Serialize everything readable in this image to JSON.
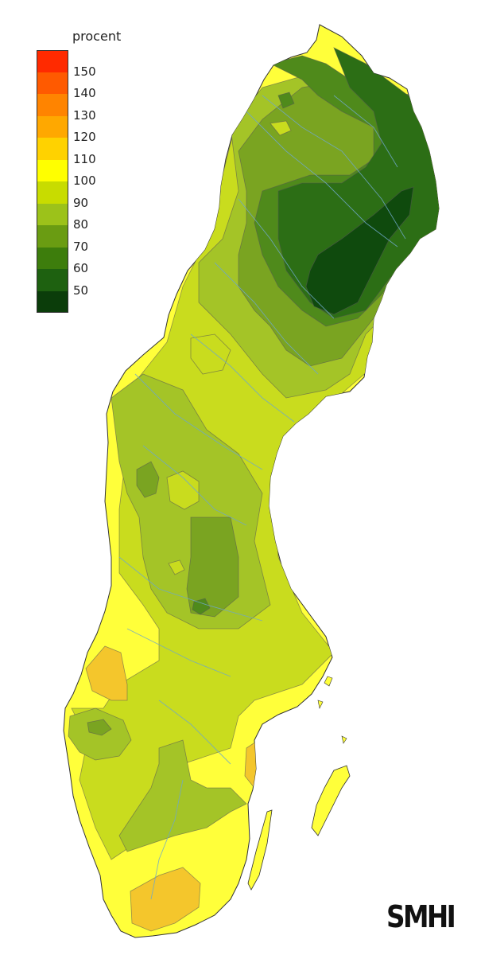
{
  "legend": {
    "title": "procent",
    "classes": [
      {
        "label": "150",
        "color": "#ff2a00"
      },
      {
        "label": "140",
        "color": "#ff5a00"
      },
      {
        "label": "130",
        "color": "#ff8400"
      },
      {
        "label": "120",
        "color": "#ffa800"
      },
      {
        "label": "110",
        "color": "#ffd200"
      },
      {
        "label": "100",
        "color": "#ffff00"
      },
      {
        "label": "90",
        "color": "#c8dc00"
      },
      {
        "label": "80",
        "color": "#9cc21a"
      },
      {
        "label": "70",
        "color": "#6a9c12"
      },
      {
        "label": "60",
        "color": "#3d7d0c"
      },
      {
        "label": "50",
        "color": "#1e6110"
      },
      {
        "label": "",
        "color": "#0b3d0a"
      }
    ]
  },
  "logo": {
    "text": "SMHI"
  },
  "colors": {
    "fill_110_plus": "#f8e100",
    "fill_120": "#f4c62c",
    "fill_100": "#ffff3a",
    "fill_90": "#c9dc1e",
    "fill_80": "#a4c427",
    "fill_70": "#7aa421",
    "fill_60": "#4f8a1b",
    "fill_50": "#2c6e15",
    "fill_lt50": "#0f4a0d",
    "river": "#6fa8c8",
    "outline": "#333333"
  }
}
